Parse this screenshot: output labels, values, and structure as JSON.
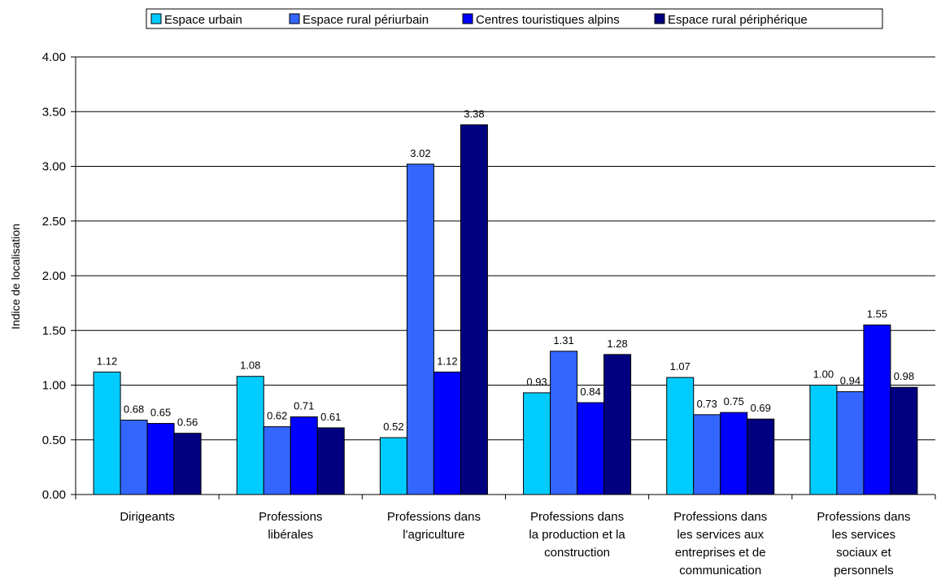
{
  "chart_data": {
    "type": "bar",
    "title": "",
    "xlabel": "",
    "ylabel": "Indice de localisation",
    "ylim": [
      0,
      4
    ],
    "yticks": [
      "0.00",
      "0.50",
      "1.00",
      "1.50",
      "2.00",
      "2.50",
      "3.00",
      "3.50",
      "4.00"
    ],
    "grid": true,
    "legend_position": "top",
    "categories": [
      [
        "Dirigeants"
      ],
      [
        "Professions",
        "libérales"
      ],
      [
        "Professions dans",
        "l'agriculture"
      ],
      [
        "Professions dans",
        "la production et la",
        "construction"
      ],
      [
        "Professions dans",
        "les services aux",
        "entreprises et de",
        "communication"
      ],
      [
        "Professions dans",
        "les services",
        "sociaux et",
        "personnels"
      ]
    ],
    "series": [
      {
        "name": "Espace urbain",
        "color": "#00CCFF",
        "values": [
          1.12,
          1.08,
          0.52,
          0.93,
          1.07,
          1.0
        ],
        "labels": [
          "1.12",
          "1.08",
          "0.52",
          "0.93",
          "1.07",
          "1.00"
        ]
      },
      {
        "name": "Espace rural périurbain",
        "color": "#3366FF",
        "values": [
          0.68,
          0.62,
          3.02,
          1.31,
          0.73,
          0.94
        ],
        "labels": [
          "0.68",
          "0.62",
          "3.02",
          "1.31",
          "0.73",
          "0.94"
        ]
      },
      {
        "name": "Centres touristiques alpins",
        "color": "#0000FF",
        "values": [
          0.65,
          0.71,
          1.12,
          0.84,
          0.75,
          1.55
        ],
        "labels": [
          "0.65",
          "0.71",
          "1.12",
          "0.84",
          "0.75",
          "1.55"
        ]
      },
      {
        "name": "Espace rural périphérique",
        "color": "#000080",
        "values": [
          0.56,
          0.61,
          3.38,
          1.28,
          0.69,
          0.98
        ],
        "labels": [
          "0.56",
          "0.61",
          "3.38",
          "1.28",
          "0.69",
          "0.98"
        ]
      }
    ]
  }
}
